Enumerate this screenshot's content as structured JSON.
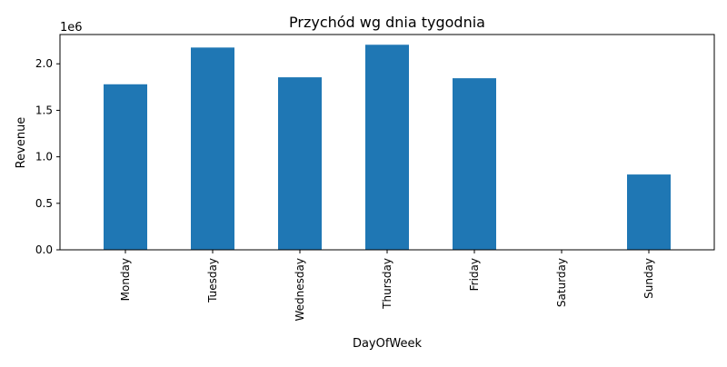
{
  "chart_data": {
    "type": "bar",
    "title": "Przychód wg dnia tygodnia",
    "xlabel": "DayOfWeek",
    "ylabel": "Revenue",
    "scale_label": "1e6",
    "categories": [
      "Monday",
      "Tuesday",
      "Wednesday",
      "Thursday",
      "Friday",
      "Saturday",
      "Sunday"
    ],
    "values": [
      1780000,
      2175000,
      1855000,
      2205000,
      1845000,
      0,
      810000
    ],
    "ylim": [
      0,
      2315000
    ],
    "yticks": [
      0,
      500000,
      1000000,
      1500000,
      2000000
    ],
    "ytick_labels": [
      "0.0",
      "0.5",
      "1.0",
      "1.5",
      "2.0"
    ],
    "grid": false,
    "legend": "none",
    "bar_color": "#1f77b4"
  }
}
